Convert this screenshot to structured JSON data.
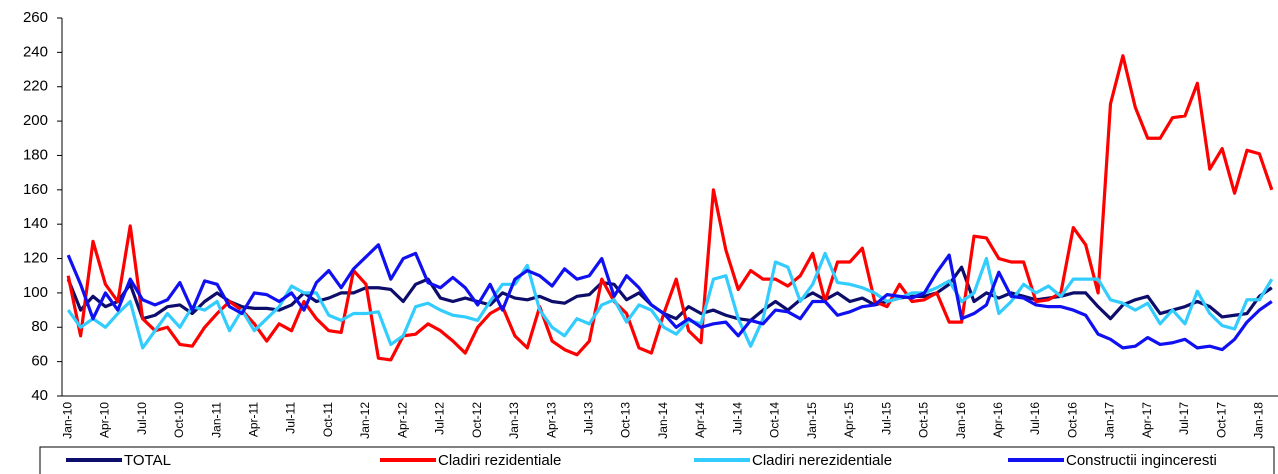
{
  "chart_data": {
    "type": "line",
    "categories": [
      "Jan-10",
      null,
      null,
      "Apr-10",
      null,
      null,
      "Jul-10",
      null,
      null,
      "Oct-10",
      null,
      null,
      "Jan-11",
      null,
      null,
      "Apr-11",
      null,
      null,
      "Jul-11",
      null,
      null,
      "Oct-11",
      null,
      null,
      "Jan-12",
      null,
      null,
      "Apr-12",
      null,
      null,
      "Jul-12",
      null,
      null,
      "Oct-12",
      null,
      null,
      "Jan-13",
      null,
      null,
      "Apr-13",
      null,
      null,
      "Jul-13",
      null,
      null,
      "Oct-13",
      null,
      null,
      "Jan-14",
      null,
      null,
      "Apr-14",
      null,
      null,
      "Jul-14",
      null,
      null,
      "Oct-14",
      null,
      null,
      "Jan-15",
      null,
      null,
      "Apr-15",
      null,
      null,
      "Jul-15",
      null,
      null,
      "Oct-15",
      null,
      null,
      "Jan-16",
      null,
      null,
      "Apr-16",
      null,
      null,
      "Jul-16",
      null,
      null,
      "Oct-16",
      null,
      null,
      "Jan-17",
      null,
      null,
      "Apr-17",
      null,
      null,
      "Jul-17",
      null,
      null,
      "Oct-17",
      null,
      null,
      "Jan-18",
      null
    ],
    "series": [
      {
        "name": "TOTAL",
        "color": "#0d0d6b",
        "values": [
          108,
          90,
          98,
          92,
          95,
          105,
          85,
          87,
          92,
          93,
          88,
          95,
          100,
          95,
          92,
          91,
          91,
          90,
          93,
          100,
          95,
          97,
          100,
          100,
          103,
          103,
          102,
          95,
          105,
          108,
          97,
          95,
          97,
          95,
          93,
          100,
          97,
          96,
          98,
          95,
          94,
          98,
          99,
          106,
          105,
          96,
          100,
          93,
          88,
          85,
          92,
          88,
          90,
          87,
          85,
          84,
          90,
          95,
          90,
          96,
          100,
          96,
          100,
          95,
          97,
          93,
          95,
          97,
          98,
          98,
          100,
          105,
          115,
          95,
          100,
          97,
          100,
          98,
          96,
          97,
          98,
          100,
          100,
          92,
          85,
          93,
          96,
          98,
          88,
          90,
          92,
          95,
          92,
          86,
          87,
          88,
          98,
          103
        ]
      },
      {
        "name": "Cladiri rezidentiale",
        "color": "#ff0000",
        "values": [
          110,
          75,
          130,
          105,
          95,
          139,
          85,
          78,
          80,
          70,
          69,
          80,
          88,
          95,
          90,
          82,
          72,
          82,
          78,
          95,
          85,
          78,
          77,
          113,
          105,
          62,
          61,
          75,
          76,
          82,
          78,
          72,
          65,
          80,
          88,
          92,
          75,
          68,
          92,
          72,
          67,
          64,
          72,
          108,
          95,
          88,
          68,
          65,
          88,
          108,
          78,
          71,
          160,
          125,
          102,
          113,
          108,
          108,
          104,
          110,
          123,
          95,
          118,
          118,
          126,
          95,
          92,
          105,
          95,
          96,
          100,
          83,
          83,
          133,
          132,
          120,
          118,
          118,
          95,
          96,
          100,
          138,
          128,
          100,
          210,
          238,
          208,
          190,
          190,
          202,
          203,
          222,
          172,
          184,
          158,
          183,
          181,
          160
        ]
      },
      {
        "name": "Cladiri nerezidentiale",
        "color": "#33ccff",
        "values": [
          90,
          80,
          85,
          80,
          88,
          95,
          68,
          78,
          88,
          80,
          92,
          90,
          95,
          78,
          90,
          78,
          85,
          92,
          104,
          100,
          100,
          87,
          84,
          88,
          88,
          89,
          70,
          75,
          92,
          94,
          90,
          87,
          86,
          84,
          95,
          105,
          105,
          116,
          90,
          80,
          75,
          85,
          82,
          93,
          96,
          83,
          93,
          90,
          80,
          76,
          84,
          82,
          108,
          110,
          85,
          69,
          85,
          118,
          115,
          95,
          105,
          123,
          106,
          105,
          103,
          100,
          95,
          97,
          100,
          100,
          103,
          107,
          95,
          100,
          120,
          88,
          95,
          105,
          100,
          104,
          98,
          108,
          108,
          108,
          96,
          94,
          90,
          94,
          82,
          90,
          82,
          101,
          88,
          81,
          79,
          96,
          96,
          108
        ]
      },
      {
        "name": "Constructii inginceresti",
        "color": "#1010f0",
        "values": [
          122,
          105,
          85,
          100,
          90,
          108,
          96,
          93,
          96,
          106,
          90,
          107,
          105,
          92,
          88,
          100,
          99,
          95,
          100,
          90,
          106,
          113,
          103,
          114,
          121,
          128,
          108,
          120,
          123,
          106,
          103,
          109,
          103,
          93,
          105,
          90,
          108,
          113,
          110,
          104,
          114,
          108,
          110,
          120,
          98,
          110,
          103,
          93,
          88,
          80,
          85,
          80,
          82,
          83,
          75,
          84,
          82,
          90,
          89,
          85,
          95,
          95,
          87,
          89,
          92,
          93,
          99,
          98,
          97,
          100,
          112,
          122,
          85,
          88,
          93,
          112,
          98,
          97,
          93,
          92,
          92,
          90,
          87,
          76,
          73,
          68,
          69,
          74,
          70,
          71,
          73,
          68,
          69,
          67,
          73,
          83,
          90,
          95
        ]
      }
    ],
    "ylim": [
      40,
      260
    ],
    "yticks": [
      40,
      60,
      80,
      100,
      120,
      140,
      160,
      180,
      200,
      220,
      240,
      260
    ],
    "grid": false,
    "legend": "bottom"
  }
}
